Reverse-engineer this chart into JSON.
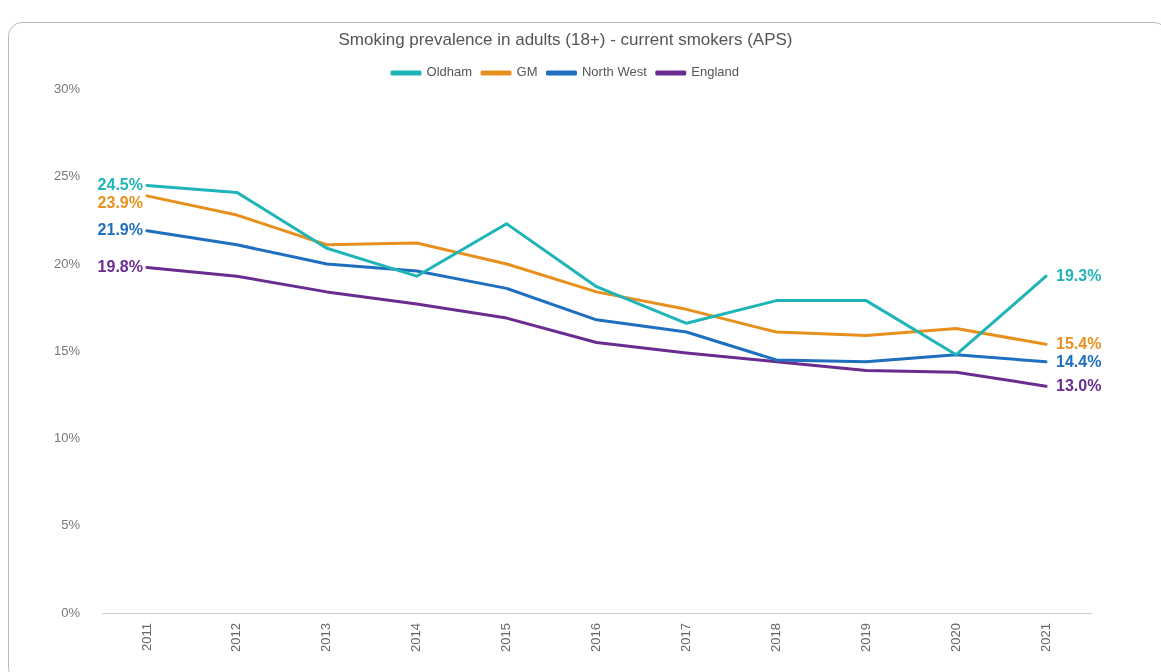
{
  "chart_data": {
    "type": "line",
    "title": "Smoking prevalence in adults (18+) - current smokers (APS)",
    "categories": [
      "2011",
      "2012",
      "2013",
      "2014",
      "2015",
      "2016",
      "2017",
      "2018",
      "2019",
      "2020",
      "2021"
    ],
    "series": [
      {
        "name": "Oldham",
        "color": "#1fb5b8",
        "values": [
          24.5,
          24.1,
          20.9,
          19.3,
          22.3,
          18.7,
          16.6,
          17.9,
          17.9,
          14.8,
          19.3
        ],
        "value_labels": [
          "24.5%",
          null,
          null,
          null,
          null,
          null,
          null,
          null,
          null,
          null,
          "19.3%"
        ]
      },
      {
        "name": "GM",
        "color": "#e8901e",
        "values": [
          23.9,
          22.8,
          21.1,
          21.2,
          20.0,
          18.4,
          17.4,
          16.1,
          15.9,
          16.3,
          15.4
        ],
        "value_labels": [
          "23.9%",
          null,
          null,
          null,
          null,
          null,
          null,
          null,
          null,
          null,
          "15.4%"
        ]
      },
      {
        "name": "North West",
        "color": "#1e6fbf",
        "values": [
          21.9,
          21.1,
          20.0,
          19.6,
          18.6,
          16.8,
          16.1,
          14.5,
          14.4,
          14.8,
          14.4
        ],
        "value_labels": [
          "21.9%",
          null,
          null,
          null,
          null,
          null,
          null,
          null,
          null,
          null,
          "14.4%"
        ]
      },
      {
        "name": "England",
        "color": "#6a2c8e",
        "values": [
          19.8,
          19.3,
          18.4,
          17.7,
          16.9,
          15.5,
          14.9,
          14.4,
          13.9,
          13.8,
          13.0
        ],
        "value_labels": [
          "19.8%",
          null,
          null,
          null,
          null,
          null,
          null,
          null,
          null,
          null,
          "13.0%"
        ]
      }
    ],
    "ylim": [
      0,
      30
    ],
    "yticks": [
      {
        "value": 0,
        "label": "0%"
      },
      {
        "value": 5,
        "label": "5%"
      },
      {
        "value": 10,
        "label": "10%"
      },
      {
        "value": 15,
        "label": "15%"
      },
      {
        "value": 20,
        "label": "20%"
      },
      {
        "value": 25,
        "label": "25%"
      },
      {
        "value": 30,
        "label": "30%"
      }
    ],
    "grid": false,
    "legend": "top",
    "marker": "none",
    "line_style": "solid"
  }
}
